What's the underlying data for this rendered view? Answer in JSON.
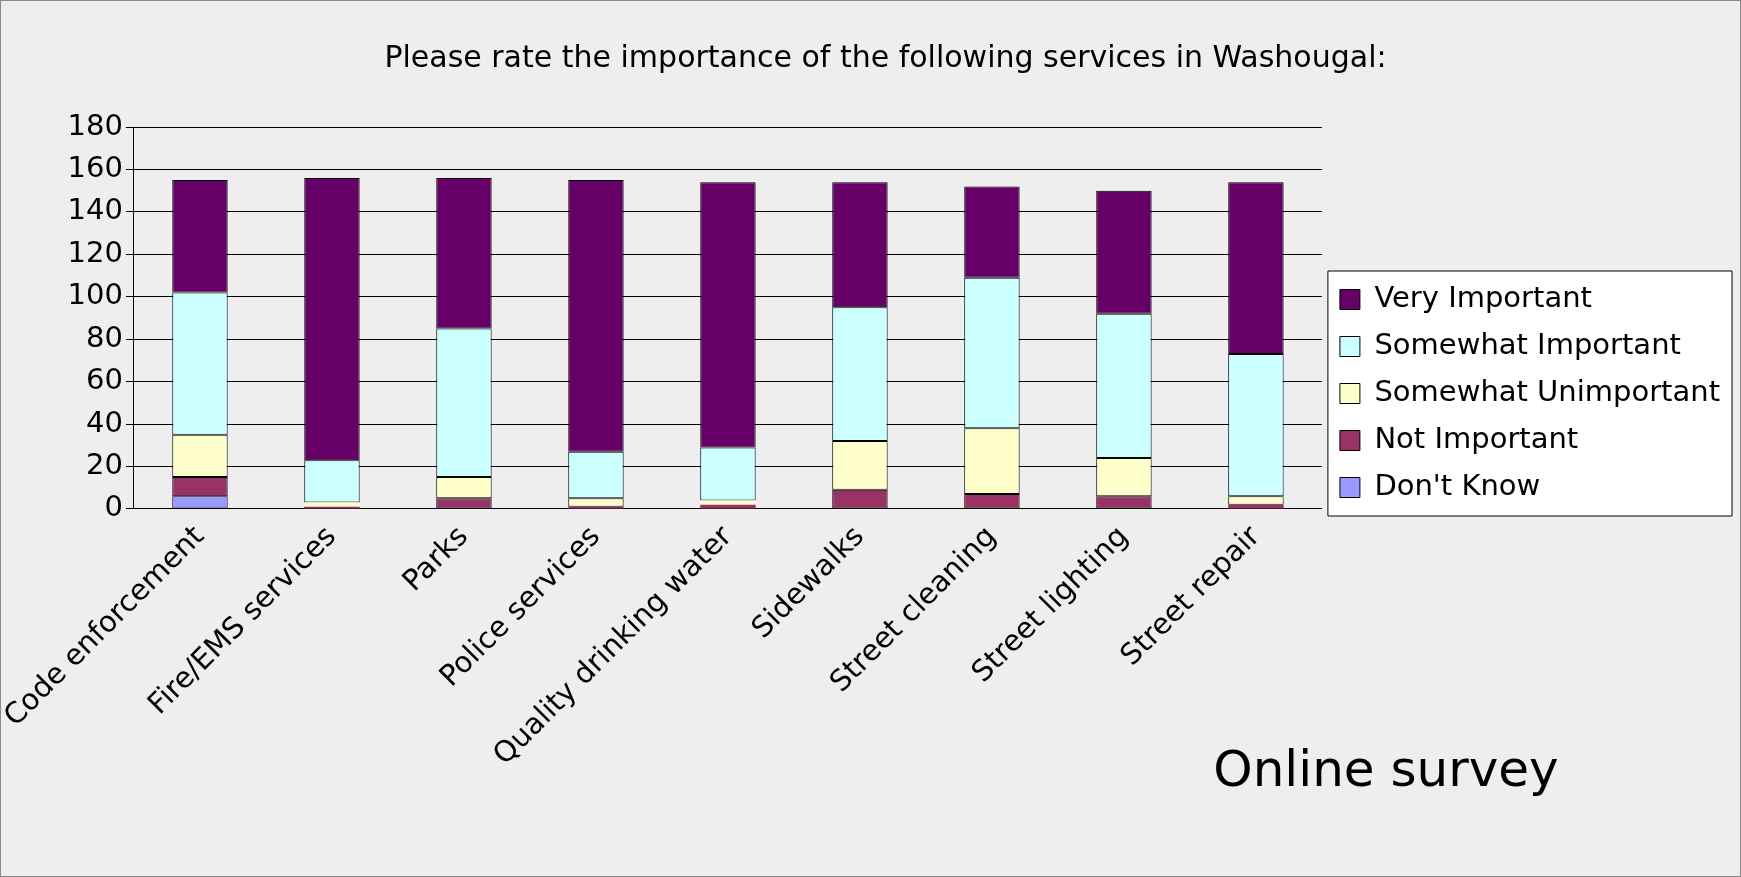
{
  "chart_data": {
    "type": "bar",
    "stacked": true,
    "title": "Please rate the importance of the following services in Washougal:",
    "categories": [
      "Code enforcement",
      "Fire/EMS services",
      "Parks",
      "Police services",
      "Quality drinking water",
      "Sidewalks",
      "Street cleaning",
      "Street lighting",
      "Street repair"
    ],
    "series": [
      {
        "name": "Don't Know",
        "color": "#9999ff",
        "values": [
          6,
          0,
          0,
          0,
          0,
          0,
          0,
          0,
          0
        ]
      },
      {
        "name": "Not Important",
        "color": "#993366",
        "values": [
          9,
          1,
          5,
          1,
          2,
          9,
          7,
          6,
          2
        ]
      },
      {
        "name": "Somewhat Unimportant",
        "color": "#ffffcc",
        "values": [
          20,
          2,
          10,
          4,
          2,
          23,
          31,
          18,
          4
        ]
      },
      {
        "name": "Somewhat Important",
        "color": "#ccffff",
        "values": [
          67,
          20,
          70,
          22,
          25,
          63,
          71,
          68,
          67
        ]
      },
      {
        "name": "Very Important",
        "color": "#660066",
        "values": [
          53,
          133,
          71,
          128,
          125,
          59,
          43,
          58,
          81
        ]
      }
    ],
    "ylim": [
      0,
      180
    ],
    "yticks": [
      0,
      20,
      40,
      60,
      80,
      100,
      120,
      140,
      160,
      180
    ],
    "grid": "y",
    "legend": "right",
    "annotations": [
      "Online survey"
    ]
  }
}
